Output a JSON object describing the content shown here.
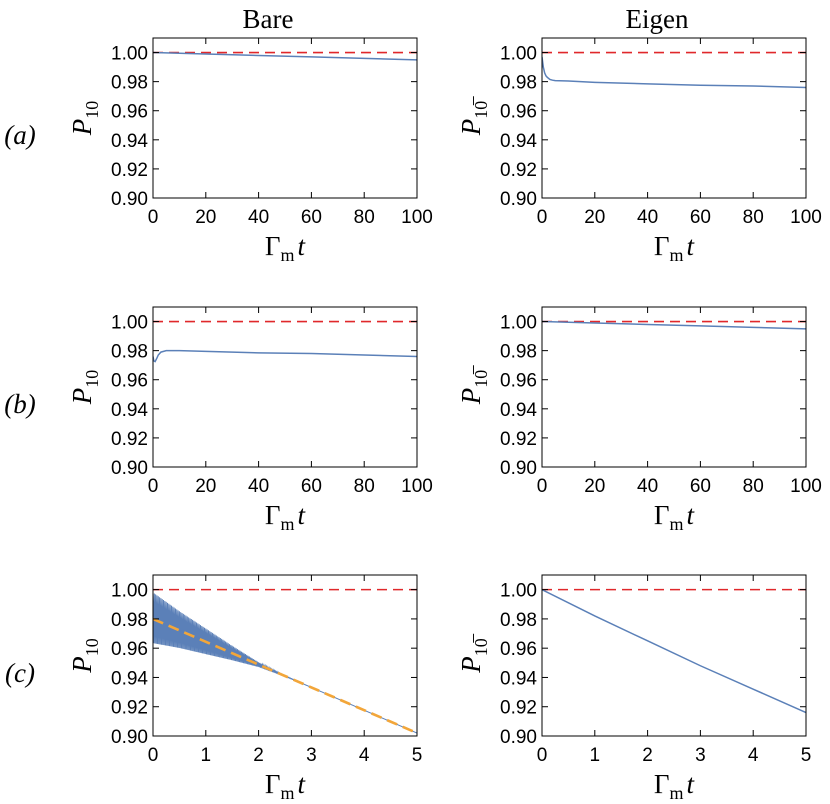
{
  "column_titles": [
    "Bare",
    "Eigen"
  ],
  "row_labels": [
    "(a)",
    "(b)",
    "(c)"
  ],
  "colors": {
    "data_line": "#5b80b8",
    "reference_line": "#e0282b",
    "fit_line": "#f2a63a"
  },
  "chart_data": [
    {
      "type": "line",
      "row": "(a)",
      "column": "Bare",
      "xlabel": "Γmt",
      "ylabel": "P10",
      "xlim": [
        0,
        100
      ],
      "ylim": [
        0.9,
        1.01
      ],
      "xticks": [
        0,
        20,
        40,
        60,
        80,
        100
      ],
      "yticks": [
        0.9,
        0.92,
        0.94,
        0.96,
        0.98,
        1.0
      ],
      "reference": {
        "y": 1.0,
        "style": "dashed"
      },
      "series": [
        {
          "style": "solid",
          "x": [
            0,
            10,
            20,
            40,
            60,
            80,
            100
          ],
          "y": [
            1.0,
            0.9995,
            0.999,
            0.998,
            0.997,
            0.996,
            0.995
          ]
        }
      ]
    },
    {
      "type": "line",
      "row": "(a)",
      "column": "Eigen",
      "xlabel": "Γmt",
      "ylabel": "P10̅",
      "xlim": [
        0,
        100
      ],
      "ylim": [
        0.9,
        1.01
      ],
      "xticks": [
        0,
        20,
        40,
        60,
        80,
        100
      ],
      "yticks": [
        0.9,
        0.92,
        0.94,
        0.96,
        0.98,
        1.0
      ],
      "reference": {
        "y": 1.0,
        "style": "dashed"
      },
      "series": [
        {
          "style": "solid",
          "x": [
            0,
            0.5,
            1,
            1.5,
            2,
            3,
            4,
            5,
            10,
            20,
            40,
            60,
            80,
            100
          ],
          "y": [
            0.997,
            0.99,
            0.986,
            0.984,
            0.983,
            0.9815,
            0.981,
            0.9807,
            0.9804,
            0.9795,
            0.9785,
            0.9775,
            0.977,
            0.976
          ]
        }
      ]
    },
    {
      "type": "line",
      "row": "(b)",
      "column": "Bare",
      "xlabel": "Γmt",
      "ylabel": "P10",
      "xlim": [
        0,
        100
      ],
      "ylim": [
        0.9,
        1.01
      ],
      "xticks": [
        0,
        20,
        40,
        60,
        80,
        100
      ],
      "yticks": [
        0.9,
        0.92,
        0.94,
        0.96,
        0.98,
        1.0
      ],
      "reference": {
        "y": 1.0,
        "style": "dashed"
      },
      "series": [
        {
          "style": "solid",
          "x": [
            0,
            0.3,
            0.8,
            1.5,
            2,
            3,
            4,
            5,
            10,
            20,
            40,
            60,
            80,
            100
          ],
          "y": [
            0.976,
            0.973,
            0.9725,
            0.975,
            0.977,
            0.979,
            0.9795,
            0.98,
            0.98,
            0.9795,
            0.9785,
            0.978,
            0.977,
            0.976
          ]
        }
      ]
    },
    {
      "type": "line",
      "row": "(b)",
      "column": "Eigen",
      "xlabel": "Γmt",
      "ylabel": "P10̅",
      "xlim": [
        0,
        100
      ],
      "ylim": [
        0.9,
        1.01
      ],
      "xticks": [
        0,
        20,
        40,
        60,
        80,
        100
      ],
      "yticks": [
        0.9,
        0.92,
        0.94,
        0.96,
        0.98,
        1.0
      ],
      "reference": {
        "y": 1.0,
        "style": "dashed"
      },
      "series": [
        {
          "style": "solid",
          "x": [
            0,
            10,
            20,
            40,
            60,
            80,
            100
          ],
          "y": [
            1.0,
            0.9995,
            0.999,
            0.998,
            0.997,
            0.996,
            0.995
          ]
        }
      ]
    },
    {
      "type": "line",
      "row": "(c)",
      "column": "Bare",
      "xlabel": "Γmt",
      "ylabel": "P10",
      "xlim": [
        0,
        5
      ],
      "ylim": [
        0.9,
        1.01
      ],
      "xticks": [
        0,
        1,
        2,
        3,
        4,
        5
      ],
      "yticks": [
        0.9,
        0.92,
        0.94,
        0.96,
        0.98,
        1.0
      ],
      "reference": {
        "y": 1.0,
        "style": "dashed"
      },
      "series": [
        {
          "style": "oscillating",
          "x": [
            0,
            0.5,
            1.0,
            1.5,
            2.0,
            2.5,
            3.0,
            4.0,
            5.0
          ],
          "center": [
            0.98,
            0.9722,
            0.9644,
            0.9566,
            0.9488,
            0.941,
            0.9332,
            0.9176,
            0.902
          ],
          "amplitude": [
            0.018,
            0.013,
            0.009,
            0.005,
            0.0015,
            0.0003,
            0,
            0,
            0
          ]
        },
        {
          "style": "dashed",
          "x": [
            0,
            5
          ],
          "y": [
            0.98,
            0.902
          ]
        }
      ]
    },
    {
      "type": "line",
      "row": "(c)",
      "column": "Eigen",
      "xlabel": "Γmt",
      "ylabel": "P10̅",
      "xlim": [
        0,
        5
      ],
      "ylim": [
        0.9,
        1.01
      ],
      "xticks": [
        0,
        1,
        2,
        3,
        4,
        5
      ],
      "yticks": [
        0.9,
        0.92,
        0.94,
        0.96,
        0.98,
        1.0
      ],
      "reference": {
        "y": 1.0,
        "style": "dashed"
      },
      "series": [
        {
          "style": "solid",
          "x": [
            0,
            1,
            2,
            3,
            4,
            5
          ],
          "y": [
            1.0,
            0.982,
            0.965,
            0.948,
            0.932,
            0.916
          ]
        }
      ]
    }
  ]
}
